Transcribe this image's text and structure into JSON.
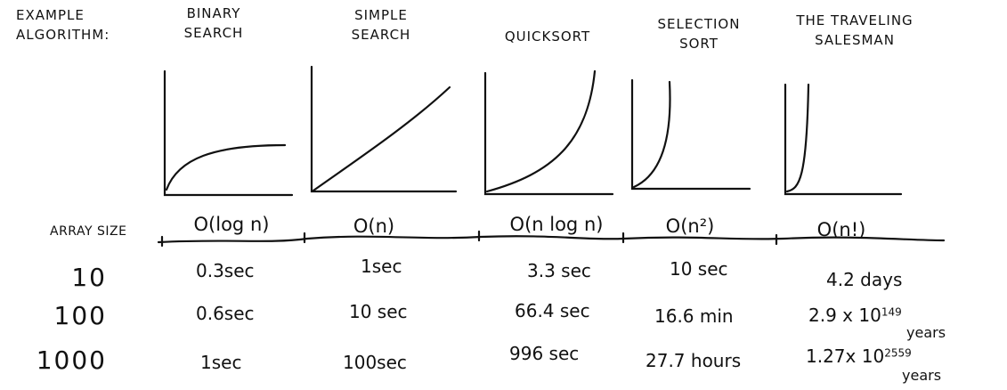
{
  "header": {
    "row_label_line1": "EXAMPLE",
    "row_label_line2": "ALGORITHM:",
    "array_size_label": "ARRAY SIZE"
  },
  "algorithms": [
    {
      "name_line1": "BINARY",
      "name_line2": "SEARCH",
      "big_o": "O(log n)",
      "times": [
        "0.3sec",
        "0.6sec",
        "1sec"
      ]
    },
    {
      "name_line1": "SIMPLE",
      "name_line2": "SEARCH",
      "big_o": "O(n)",
      "times": [
        "1sec",
        "10 sec",
        "100sec"
      ]
    },
    {
      "name_line1": "QUICKSORT",
      "name_line2": "",
      "big_o": "O(n log n)",
      "times": [
        "3.3 sec",
        "66.4 sec",
        "996 sec"
      ]
    },
    {
      "name_line1": "SELECTION",
      "name_line2": "SORT",
      "big_o": "O(n²)",
      "times": [
        "10 sec",
        "16.6 min",
        "27.7 hours"
      ]
    },
    {
      "name_line1": "THE TRAVELING",
      "name_line2": "SALESMAN",
      "big_o": "O(n!)",
      "times": [
        "4.2 days",
        "2.9 x 10",
        "1.27x 10"
      ],
      "exponents": [
        "",
        "149",
        "2559"
      ],
      "suffix": [
        "",
        "years",
        "years"
      ]
    }
  ],
  "array_sizes": [
    "10",
    "100",
    "1000"
  ]
}
